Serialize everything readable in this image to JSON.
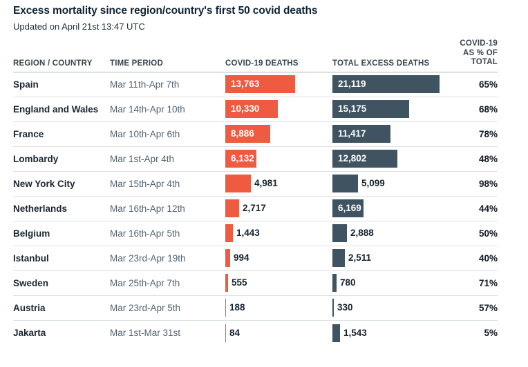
{
  "title": "Excess mortality since region/country's first 50 covid deaths",
  "subtitle": "Updated on April 21st 13:47 UTC",
  "columns": {
    "region": "REGION / COUNTRY",
    "period": "TIME PERIOD",
    "covid": "COVID-19 DEATHS",
    "excess": "TOTAL EXCESS DEATHS",
    "pct_lines": [
      "COVID-19",
      "AS % OF",
      "TOTAL"
    ]
  },
  "colors": {
    "covid_bar": "#ef5b40",
    "excess_bar": "#3f5460",
    "header_rule": "#a9b4bc",
    "row_rule": "#dce1e5",
    "title_text": "#0e2233"
  },
  "chart_data": {
    "type": "bar",
    "orientation": "horizontal",
    "title": "Excess mortality since region/country's first 50 covid deaths",
    "subtitle": "Updated on April 21st 13:47 UTC",
    "value_axis_hidden": true,
    "value_scale_max": 21119,
    "categories": [
      "Spain",
      "England and Wales",
      "France",
      "Lombardy",
      "New York City",
      "Netherlands",
      "Belgium",
      "Istanbul",
      "Sweden",
      "Austria",
      "Jakarta"
    ],
    "time_periods": [
      "Mar 11th-Apr 7th",
      "Mar 14th-Apr 10th",
      "Mar 10th-Apr 6th",
      "Mar 1st-Apr 4th",
      "Mar 15th-Apr 4th",
      "Mar 16th-Apr 12th",
      "Mar 16th-Apr 5th",
      "Mar 23rd-Apr 19th",
      "Mar 25th-Apr 7th",
      "Mar 23rd-Apr 5th",
      "Mar 1st-Mar 31st"
    ],
    "series": [
      {
        "name": "COVID-19 DEATHS",
        "color": "#ef5b40",
        "values": [
          13763,
          10330,
          8886,
          6132,
          4981,
          2717,
          1443,
          994,
          555,
          188,
          84
        ]
      },
      {
        "name": "TOTAL EXCESS DEATHS",
        "color": "#3f5460",
        "values": [
          21119,
          15175,
          11417,
          12802,
          5099,
          6169,
          2888,
          2511,
          780,
          330,
          1543
        ]
      }
    ],
    "covid_as_pct_of_total": [
      65,
      68,
      78,
      48,
      98,
      44,
      50,
      40,
      71,
      57,
      5
    ]
  }
}
